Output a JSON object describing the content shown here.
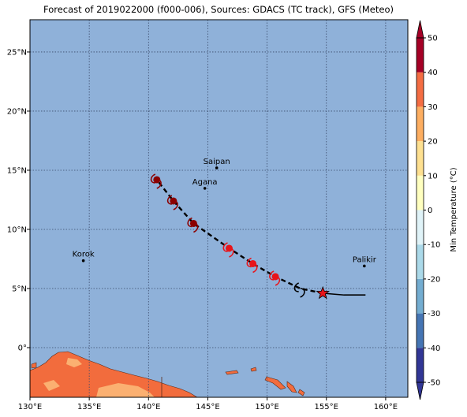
{
  "chart_data": {
    "type": "map",
    "title": "Forecast of 2019022000 (f000-006), Sources: GDACS (TC track), GFS (Meteo)",
    "xlim": [
      130,
      161.87
    ],
    "ylim": [
      -4.2,
      27.73
    ],
    "xticks": [
      {
        "value": 130,
        "label": "130°E"
      },
      {
        "value": 135,
        "label": "135°E"
      },
      {
        "value": 140,
        "label": "140°E"
      },
      {
        "value": 145,
        "label": "145°E"
      },
      {
        "value": 150,
        "label": "150°E"
      },
      {
        "value": 155,
        "label": "155°E"
      },
      {
        "value": 160,
        "label": "160°E"
      }
    ],
    "yticks": [
      {
        "value": 0,
        "label": "0°"
      },
      {
        "value": 5,
        "label": "5°N"
      },
      {
        "value": 10,
        "label": "10°N"
      },
      {
        "value": 15,
        "label": "15°N"
      },
      {
        "value": 20,
        "label": "20°N"
      },
      {
        "value": 25,
        "label": "25°N"
      }
    ],
    "grid": true,
    "ocean_color": "#8fb1d9",
    "places": [
      {
        "name": "Saipan",
        "lon": 145.75,
        "lat": 15.2
      },
      {
        "name": "Agana",
        "lon": 144.75,
        "lat": 13.47
      },
      {
        "name": "Korok",
        "lon": 134.5,
        "lat": 7.35
      },
      {
        "name": "Palikir",
        "lon": 158.2,
        "lat": 6.9
      }
    ],
    "past_track": {
      "lon": [
        158.3,
        156.5,
        154.7
      ],
      "lat": [
        4.45,
        4.45,
        4.6
      ]
    },
    "forecast_track": {
      "lon": [
        154.7,
        152.8,
        150.7,
        148.8,
        146.8,
        143.8,
        142.1,
        140.7
      ],
      "lat": [
        4.6,
        5.0,
        6.0,
        7.1,
        8.4,
        10.5,
        12.4,
        14.2
      ]
    },
    "current_position": {
      "lon": 154.7,
      "lat": 4.6,
      "color": "#e8141a"
    },
    "markers": [
      {
        "lon": 140.7,
        "lat": 14.2,
        "color": "#8b0000"
      },
      {
        "lon": 142.1,
        "lat": 12.4,
        "color": "#8b0000"
      },
      {
        "lon": 143.8,
        "lat": 10.5,
        "color": "#8b0000"
      },
      {
        "lon": 146.8,
        "lat": 8.4,
        "color": "#e8141a"
      },
      {
        "lon": 148.8,
        "lat": 7.1,
        "color": "#e8141a"
      },
      {
        "lon": 150.7,
        "lat": 6.0,
        "color": "#e8141a"
      },
      {
        "lon": 152.8,
        "lat": 5.0,
        "color": "#000000"
      }
    ],
    "colorbar": {
      "label": "Min Temperature (°C)",
      "levels": [
        -50,
        -40,
        -30,
        -20,
        -10,
        0,
        10,
        20,
        30,
        40,
        50
      ],
      "colors": [
        "#313695",
        "#4575b4",
        "#74add1",
        "#abd9e9",
        "#e0f3f8",
        "#ffffbf",
        "#fee090",
        "#fdae61",
        "#f46d43",
        "#a50026"
      ],
      "ticks": [
        -50,
        -40,
        -30,
        -20,
        -10,
        0,
        10,
        20,
        30,
        40,
        50
      ]
    }
  }
}
